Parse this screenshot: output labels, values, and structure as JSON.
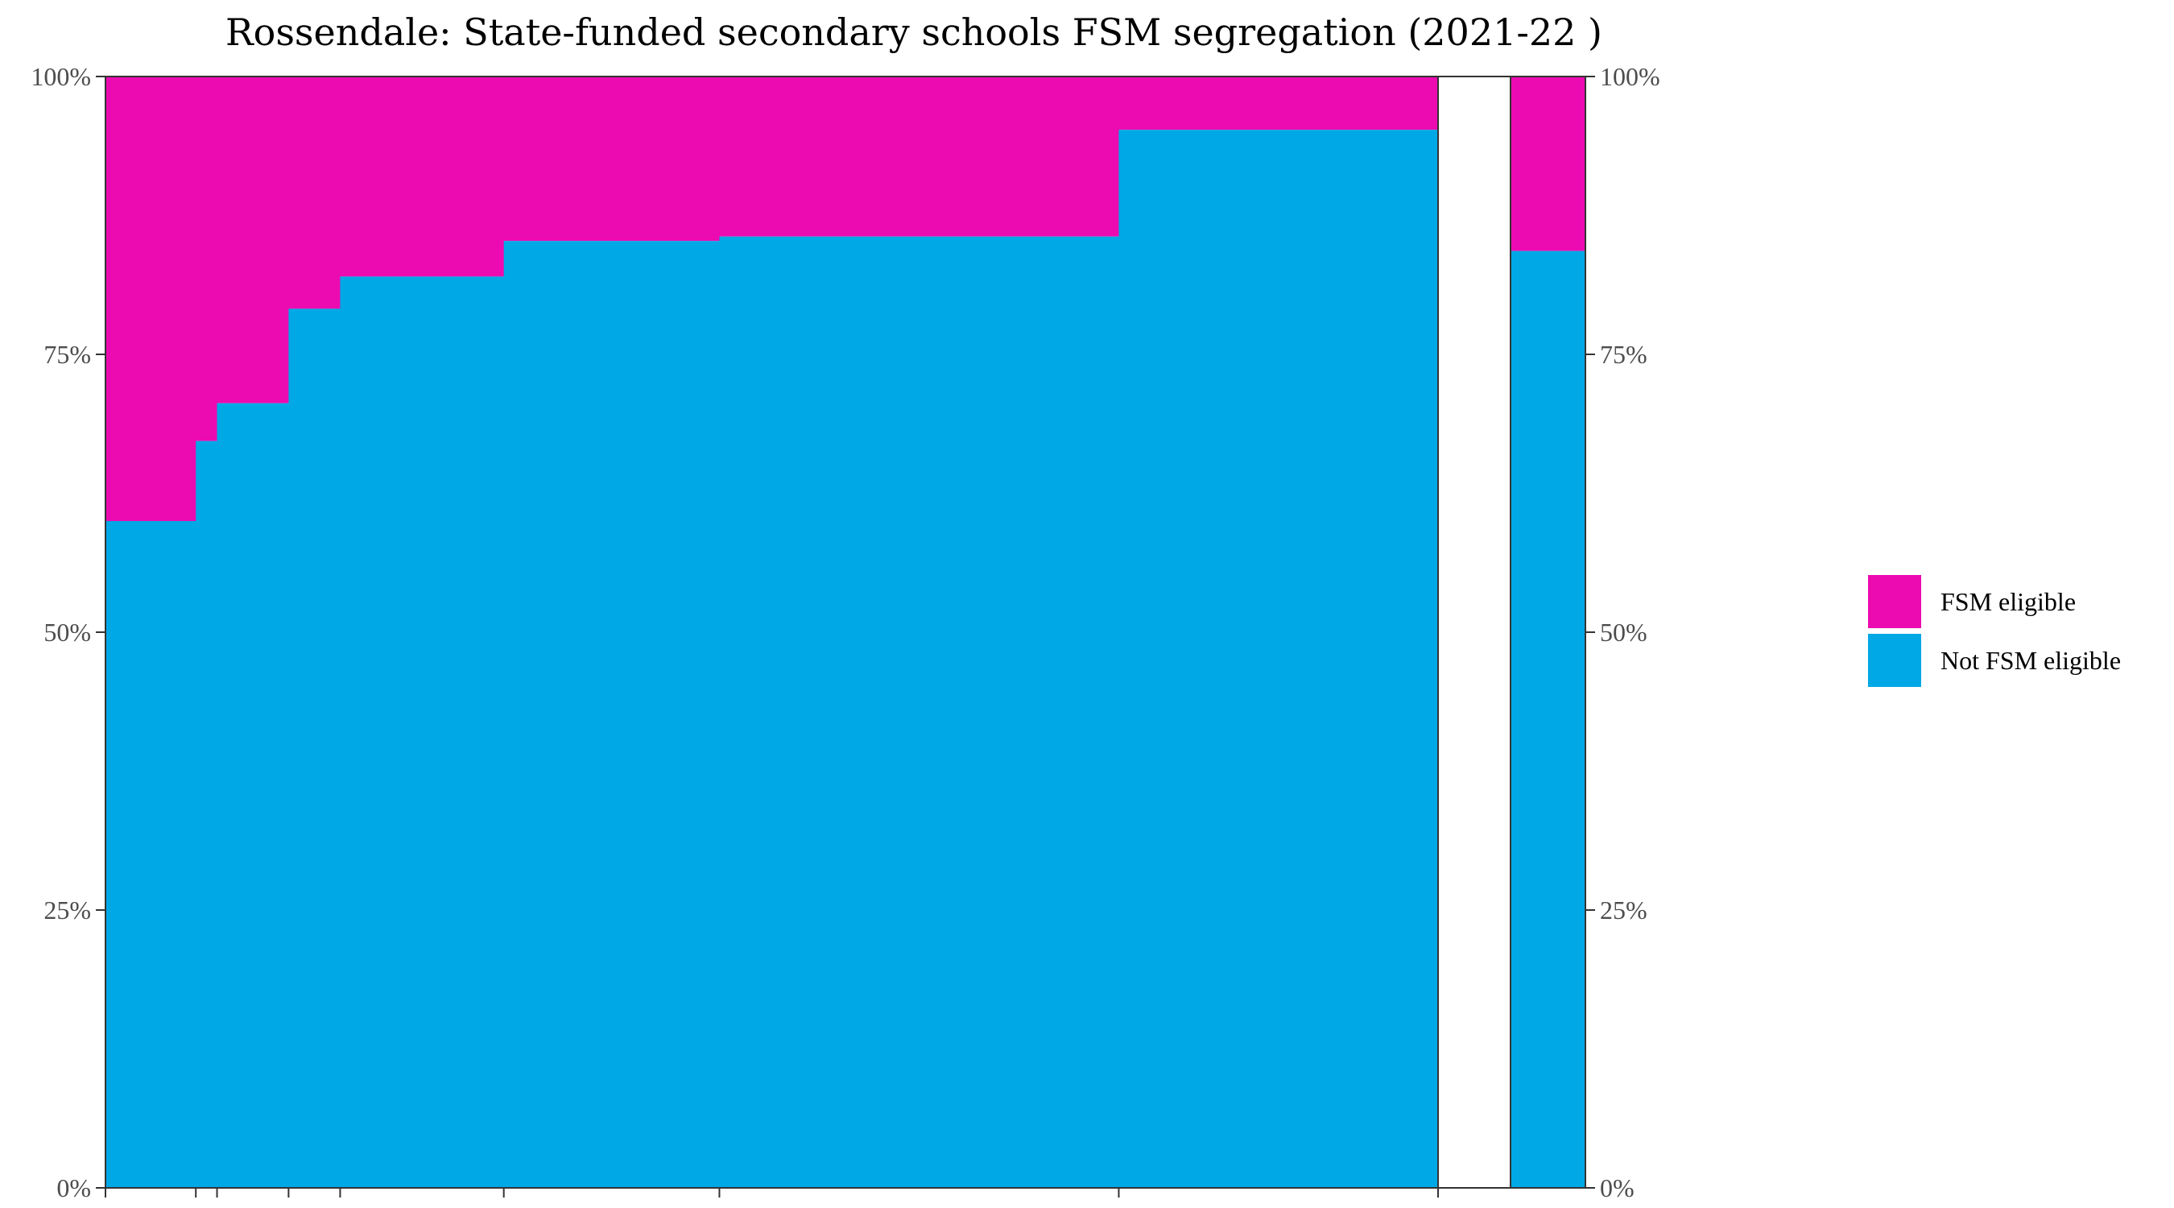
{
  "chart_data": {
    "type": "bar",
    "subtype": "stacked-100-variable-width",
    "title": "Rossendale: State-funded secondary schools FSM segregation (2021-22 )",
    "xlabel": "",
    "ylabel": "",
    "ylim": [
      0,
      1
    ],
    "y_ticks": [
      "0%",
      "25%",
      "50%",
      "75%",
      "100%"
    ],
    "grid": false,
    "legend_position": "right",
    "series": [
      {
        "name": "FSM eligible",
        "color": "#EC0BB0"
      },
      {
        "name": "Not FSM eligible",
        "color": "#00A8E6"
      }
    ],
    "schools": [
      {
        "share_of_pupils": 0.0678,
        "not_fsm_share": 0.6
      },
      {
        "share_of_pupils": 0.0159,
        "not_fsm_share": 0.672
      },
      {
        "share_of_pupils": 0.0537,
        "not_fsm_share": 0.706
      },
      {
        "share_of_pupils": 0.0387,
        "not_fsm_share": 0.791
      },
      {
        "share_of_pupils": 0.1228,
        "not_fsm_share": 0.82
      },
      {
        "share_of_pupils": 0.1618,
        "not_fsm_share": 0.852
      },
      {
        "share_of_pupils": 0.2997,
        "not_fsm_share": 0.856
      },
      {
        "share_of_pupils": 0.2396,
        "not_fsm_share": 0.952
      }
    ],
    "overall": {
      "not_fsm_share": 0.843
    }
  }
}
